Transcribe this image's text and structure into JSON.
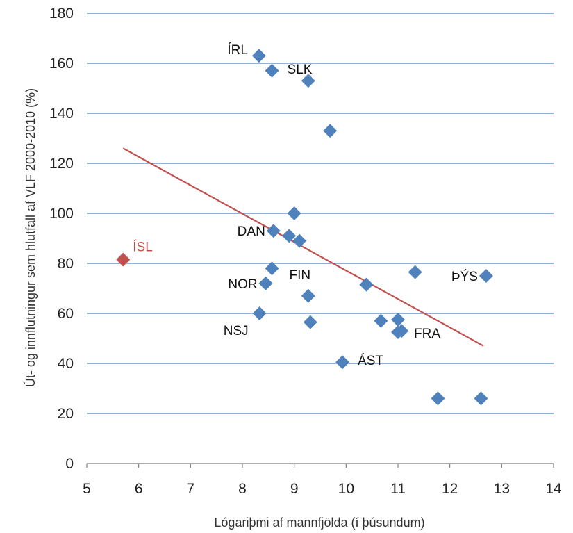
{
  "chart_data": {
    "type": "scatter",
    "xlabel": "Lógariþmi af mannfjölda (í þúsundum)",
    "ylabel": "Út- og innflutningur  sem hlutfall af VLF 2000-2010 (%)",
    "xlim": [
      5,
      14
    ],
    "ylim": [
      0,
      180
    ],
    "x_ticks": [
      5,
      6,
      7,
      8,
      9,
      10,
      11,
      12,
      13,
      14
    ],
    "y_ticks": [
      0,
      20,
      40,
      60,
      80,
      100,
      120,
      140,
      160,
      180
    ],
    "grid": "horizontal",
    "colors": {
      "series": "#4f81bd",
      "highlight": "#c0504d",
      "trend": "#c0504d",
      "grid": "#4f81bd"
    },
    "points": [
      {
        "x": 8.32,
        "y": 163,
        "label": "ÍRL",
        "label_side": "upper-left"
      },
      {
        "x": 8.57,
        "y": 157,
        "label": "SLK",
        "label_side": "upper-right"
      },
      {
        "x": 9.27,
        "y": 153,
        "label": ""
      },
      {
        "x": 9.69,
        "y": 133,
        "label": ""
      },
      {
        "x": 9.0,
        "y": 100,
        "label": ""
      },
      {
        "x": 8.6,
        "y": 93,
        "label": "DAN",
        "label_side": "left"
      },
      {
        "x": 8.9,
        "y": 91,
        "label": ""
      },
      {
        "x": 9.1,
        "y": 89,
        "label": ""
      },
      {
        "x": 8.57,
        "y": 78,
        "label": "FIN",
        "label_side": "lower-right"
      },
      {
        "x": 8.45,
        "y": 72,
        "label": "NOR",
        "label_side": "left"
      },
      {
        "x": 9.27,
        "y": 67,
        "label": ""
      },
      {
        "x": 8.33,
        "y": 60,
        "label": "NSJ",
        "label_side": "lower-left"
      },
      {
        "x": 9.31,
        "y": 56.5,
        "label": ""
      },
      {
        "x": 10.39,
        "y": 71.5,
        "label": ""
      },
      {
        "x": 11.33,
        "y": 76.5,
        "label": ""
      },
      {
        "x": 12.7,
        "y": 75,
        "label": "ÞÝS",
        "label_side": "left"
      },
      {
        "x": 10.67,
        "y": 57,
        "label": ""
      },
      {
        "x": 11.0,
        "y": 57.5,
        "label": ""
      },
      {
        "x": 11.0,
        "y": 52.5,
        "label": "FRA",
        "label_side": "right"
      },
      {
        "x": 11.07,
        "y": 53,
        "label": ""
      },
      {
        "x": 9.93,
        "y": 40.5,
        "label": "ÁST",
        "label_side": "upper-right"
      },
      {
        "x": 11.77,
        "y": 26,
        "label": ""
      },
      {
        "x": 12.6,
        "y": 26,
        "label": ""
      }
    ],
    "highlight_point": {
      "x": 5.7,
      "y": 81.5,
      "label": "ÍSL"
    },
    "trendline": {
      "x": [
        5.7,
        12.65
      ],
      "y": [
        126,
        47
      ]
    }
  }
}
